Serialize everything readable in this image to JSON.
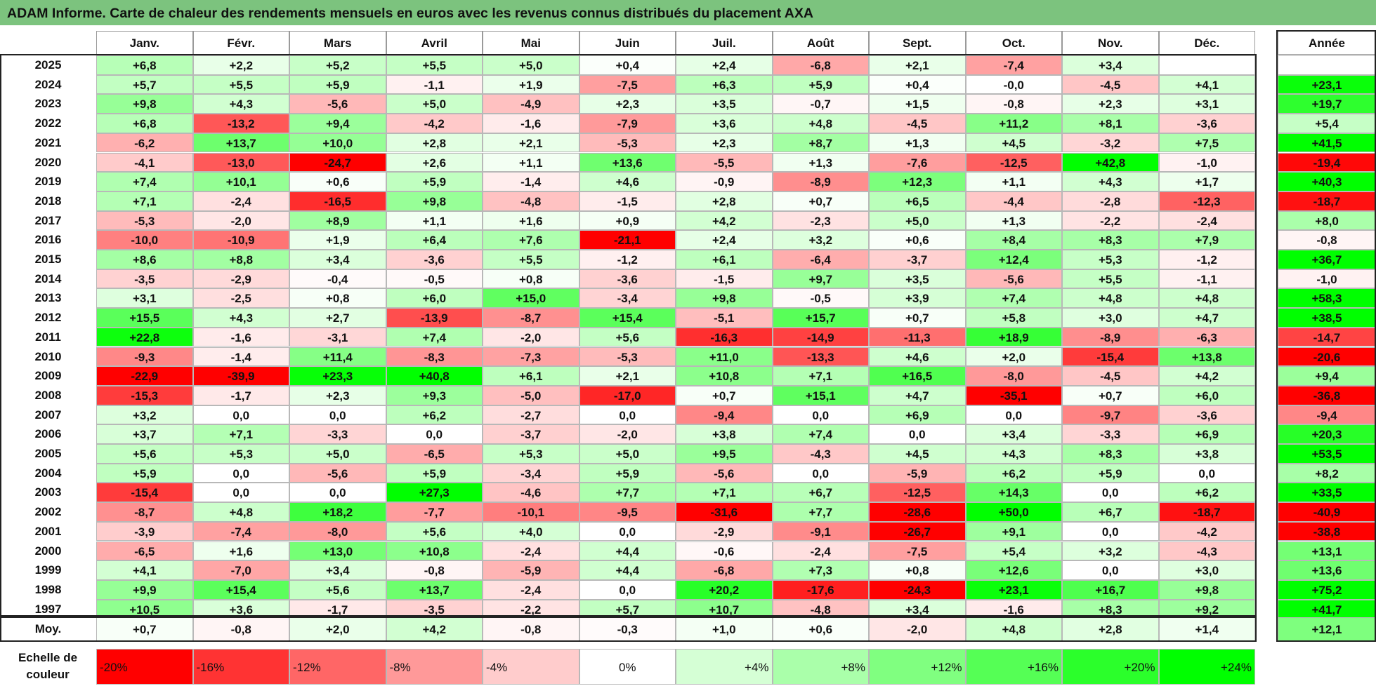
{
  "title": "ADAM Informe. Carte de chaleur des rendements mensuels en euros avec les revenus connus distribués du placement AXA",
  "chart_data": {
    "type": "heatmap",
    "months": [
      "Janv.",
      "Févr.",
      "Mars",
      "Avril",
      "Mai",
      "Juin",
      "Juil.",
      "Août",
      "Sept.",
      "Oct.",
      "Nov.",
      "Déc."
    ],
    "annual_label": "Année",
    "years": [
      "2025",
      "2024",
      "2023",
      "2022",
      "2021",
      "2020",
      "2019",
      "2018",
      "2017",
      "2016",
      "2015",
      "2014",
      "2013",
      "2012",
      "2011",
      "2010",
      "2009",
      "2008",
      "2007",
      "2006",
      "2005",
      "2004",
      "2003",
      "2002",
      "2001",
      "2000",
      "1999",
      "1998",
      "1997"
    ],
    "values": [
      [
        "+6,8",
        "+2,2",
        "+5,2",
        "+5,5",
        "+5,0",
        "+0,4",
        "+2,4",
        "-6,8",
        "+2,1",
        "-7,4",
        "+3,4",
        ""
      ],
      [
        "+5,7",
        "+5,5",
        "+5,9",
        "-1,1",
        "+1,9",
        "-7,5",
        "+6,3",
        "+5,9",
        "+0,4",
        "-0,0",
        "-4,5",
        "+4,1"
      ],
      [
        "+9,8",
        "+4,3",
        "-5,6",
        "+5,0",
        "-4,9",
        "+2,3",
        "+3,5",
        "-0,7",
        "+1,5",
        "-0,8",
        "+2,3",
        "+3,1"
      ],
      [
        "+6,8",
        "-13,2",
        "+9,4",
        "-4,2",
        "-1,6",
        "-7,9",
        "+3,6",
        "+4,8",
        "-4,5",
        "+11,2",
        "+8,1",
        "-3,6"
      ],
      [
        "-6,2",
        "+13,7",
        "+10,0",
        "+2,8",
        "+2,1",
        "-5,3",
        "+2,3",
        "+8,7",
        "+1,3",
        "+4,5",
        "-3,2",
        "+7,5"
      ],
      [
        "-4,1",
        "-13,0",
        "-24,7",
        "+2,6",
        "+1,1",
        "+13,6",
        "-5,5",
        "+1,3",
        "-7,6",
        "-12,5",
        "+42,8",
        "-1,0"
      ],
      [
        "+7,4",
        "+10,1",
        "+0,6",
        "+5,9",
        "-1,4",
        "+4,6",
        "-0,9",
        "-8,9",
        "+12,3",
        "+1,1",
        "+4,3",
        "+1,7"
      ],
      [
        "+7,1",
        "-2,4",
        "-16,5",
        "+9,8",
        "-4,8",
        "-1,5",
        "+2,8",
        "+0,7",
        "+6,5",
        "-4,4",
        "-2,8",
        "-12,3"
      ],
      [
        "-5,3",
        "-2,0",
        "+8,9",
        "+1,1",
        "+1,6",
        "+0,9",
        "+4,2",
        "-2,3",
        "+5,0",
        "+1,3",
        "-2,2",
        "-2,4"
      ],
      [
        "-10,0",
        "-10,9",
        "+1,9",
        "+6,4",
        "+7,6",
        "-21,1",
        "+2,4",
        "+3,2",
        "+0,6",
        "+8,4",
        "+8,3",
        "+7,9"
      ],
      [
        "+8,6",
        "+8,8",
        "+3,4",
        "-3,6",
        "+5,5",
        "-1,2",
        "+6,1",
        "-6,4",
        "-3,7",
        "+12,4",
        "+5,3",
        "-1,2"
      ],
      [
        "-3,5",
        "-2,9",
        "-0,4",
        "-0,5",
        "+0,8",
        "-3,6",
        "-1,5",
        "+9,7",
        "+3,5",
        "-5,6",
        "+5,5",
        "-1,1"
      ],
      [
        "+3,1",
        "-2,5",
        "+0,8",
        "+6,0",
        "+15,0",
        "-3,4",
        "+9,8",
        "-0,5",
        "+3,9",
        "+7,4",
        "+4,8",
        "+4,8"
      ],
      [
        "+15,5",
        "+4,3",
        "+2,7",
        "-13,9",
        "-8,7",
        "+15,4",
        "-5,1",
        "+15,7",
        "+0,7",
        "+5,8",
        "+3,0",
        "+4,7"
      ],
      [
        "+22,8",
        "-1,6",
        "-3,1",
        "+7,4",
        "-2,0",
        "+5,6",
        "-16,3",
        "-14,9",
        "-11,3",
        "+18,9",
        "-8,9",
        "-6,3"
      ],
      [
        "-9,3",
        "-1,4",
        "+11,4",
        "-8,3",
        "-7,3",
        "-5,3",
        "+11,0",
        "-13,3",
        "+4,6",
        "+2,0",
        "-15,4",
        "+13,8"
      ],
      [
        "-22,9",
        "-39,9",
        "+23,3",
        "+40,8",
        "+6,1",
        "+2,1",
        "+10,8",
        "+7,1",
        "+16,5",
        "-8,0",
        "-4,5",
        "+4,2"
      ],
      [
        "-15,3",
        "-1,7",
        "+2,3",
        "+9,3",
        "-5,0",
        "-17,0",
        "+0,7",
        "+15,1",
        "+4,7",
        "-35,1",
        "+0,7",
        "+6,0"
      ],
      [
        "+3,2",
        "0,0",
        "0,0",
        "+6,2",
        "-2,7",
        "0,0",
        "-9,4",
        "0,0",
        "+6,9",
        "0,0",
        "-9,7",
        "-3,6"
      ],
      [
        "+3,7",
        "+7,1",
        "-3,3",
        "0,0",
        "-3,7",
        "-2,0",
        "+3,8",
        "+7,4",
        "0,0",
        "+3,4",
        "-3,3",
        "+6,9"
      ],
      [
        "+5,6",
        "+5,3",
        "+5,0",
        "-6,5",
        "+5,3",
        "+5,0",
        "+9,5",
        "-4,3",
        "+4,5",
        "+4,3",
        "+8,3",
        "+3,8"
      ],
      [
        "+5,9",
        "0,0",
        "-5,6",
        "+5,9",
        "-3,4",
        "+5,9",
        "-5,6",
        "0,0",
        "-5,9",
        "+6,2",
        "+5,9",
        "0,0"
      ],
      [
        "-15,4",
        "0,0",
        "0,0",
        "+27,3",
        "-4,6",
        "+7,7",
        "+7,1",
        "+6,7",
        "-12,5",
        "+14,3",
        "0,0",
        "+6,2"
      ],
      [
        "-8,7",
        "+4,8",
        "+18,2",
        "-7,7",
        "-10,1",
        "-9,5",
        "-31,6",
        "+7,7",
        "-28,6",
        "+50,0",
        "+6,7",
        "-18,7"
      ],
      [
        "-3,9",
        "-7,4",
        "-8,0",
        "+5,6",
        "+4,0",
        "0,0",
        "-2,9",
        "-9,1",
        "-26,7",
        "+9,1",
        "0,0",
        "-4,2"
      ],
      [
        "-6,5",
        "+1,6",
        "+13,0",
        "+10,8",
        "-2,4",
        "+4,4",
        "-0,6",
        "-2,4",
        "-7,5",
        "+5,4",
        "+3,2",
        "-4,3"
      ],
      [
        "+4,1",
        "-7,0",
        "+3,4",
        "-0,8",
        "-5,9",
        "+4,4",
        "-6,8",
        "+7,3",
        "+0,8",
        "+12,6",
        "0,0",
        "+3,0"
      ],
      [
        "+9,9",
        "+15,4",
        "+5,6",
        "+13,7",
        "-2,4",
        "0,0",
        "+20,2",
        "-17,6",
        "-24,3",
        "+23,1",
        "+16,7",
        "+9,8"
      ],
      [
        "+10,5",
        "+3,6",
        "-1,7",
        "-3,5",
        "-2,2",
        "+5,7",
        "+10,7",
        "-4,8",
        "+3,4",
        "-1,6",
        "+8,3",
        "+9,2"
      ]
    ],
    "annual": [
      "",
      "+23,1",
      "+19,7",
      "+5,4",
      "+41,5",
      "-19,4",
      "+40,3",
      "-18,7",
      "+8,0",
      "-0,8",
      "+36,7",
      "-1,0",
      "+58,3",
      "+38,5",
      "-14,7",
      "-20,6",
      "+9,4",
      "-36,8",
      "-9,4",
      "+20,3",
      "+53,5",
      "+8,2",
      "+33,5",
      "-40,9",
      "-38,8",
      "+13,1",
      "+13,6",
      "+75,2",
      "+41,7"
    ],
    "average_label": "Moy.",
    "average": [
      "+0,7",
      "-0,8",
      "+2,0",
      "+4,2",
      "-0,8",
      "-0,3",
      "+1,0",
      "+0,6",
      "-2,0",
      "+4,8",
      "+2,8",
      "+1,4"
    ],
    "average_annual": "+12,1",
    "scale_label": "Echelle de couleur",
    "scale": [
      {
        "label": "-20%",
        "value": -20
      },
      {
        "label": "-16%",
        "value": -16
      },
      {
        "label": "-12%",
        "value": -12
      },
      {
        "label": "-8%",
        "value": -8
      },
      {
        "label": "-4%",
        "value": -4
      },
      {
        "label": "0%",
        "value": 0
      },
      {
        "label": "+4%",
        "value": 4
      },
      {
        "label": "+8%",
        "value": 8
      },
      {
        "label": "+12%",
        "value": 12
      },
      {
        "label": "+16%",
        "value": 16
      },
      {
        "label": "+20%",
        "value": 20
      },
      {
        "label": "+24%",
        "value": 24
      }
    ],
    "colors": {
      "negative_max": "#ff0000",
      "neutral": "#ffffff",
      "positive_max": "#00ff00",
      "header_bar": "#7cc37e"
    }
  }
}
